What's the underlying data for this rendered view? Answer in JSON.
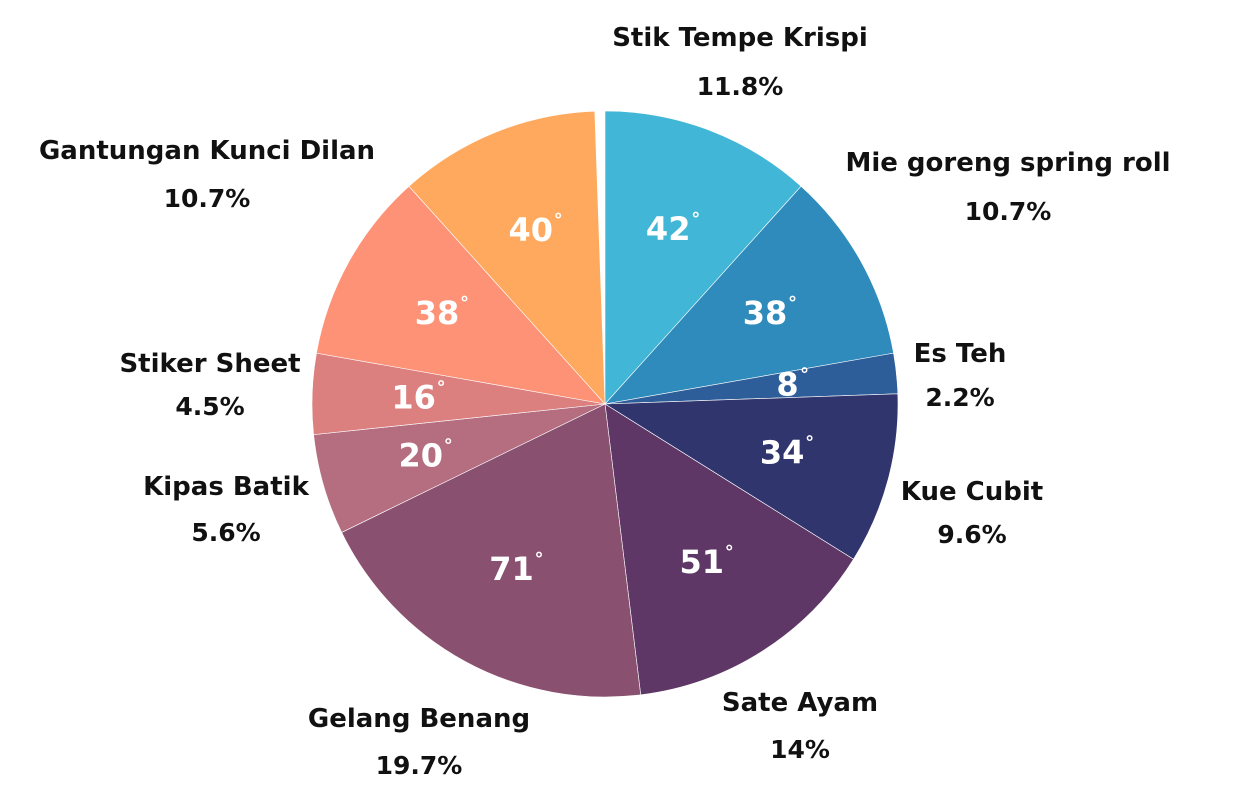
{
  "chart_data": {
    "type": "pie",
    "start_angle_deg": 0,
    "direction": "clockwise",
    "slices": [
      {
        "label": "Stik Tempe Krispi",
        "degrees": 42,
        "degree_text": "42",
        "percent_text": "11.8%",
        "color": "#41B6D6"
      },
      {
        "label": "Mie goreng spring roll",
        "degrees": 38,
        "degree_text": "38",
        "percent_text": "10.7%",
        "color": "#2E8BBB"
      },
      {
        "label": "Es Teh",
        "degrees": 8,
        "degree_text": "8",
        "percent_text": "2.2%",
        "color": "#2E5E99"
      },
      {
        "label": "Kue Cubit",
        "degrees": 34,
        "degree_text": "34",
        "percent_text": "9.6%",
        "color": "#30356E"
      },
      {
        "label": "Sate Ayam",
        "degrees": 51,
        "degree_text": "51",
        "percent_text": "14%",
        "color": "#5E3766"
      },
      {
        "label": "Gelang Benang",
        "degrees": 71,
        "degree_text": "71",
        "percent_text": "19.7%",
        "color": "#8A5070"
      },
      {
        "label": "Kipas Batik",
        "degrees": 20,
        "degree_text": "20",
        "percent_text": "5.6%",
        "color": "#B56D80"
      },
      {
        "label": "Stiker Sheet",
        "degrees": 16,
        "degree_text": "16",
        "percent_text": "4.5%",
        "color": "#DB7F7F"
      },
      {
        "label": "Gantungan Kunci Dilan",
        "degrees": 38,
        "degree_text": "38",
        "percent_text": "10.7%",
        "color": "#FD9277"
      },
      {
        "label": "",
        "degrees": 40,
        "degree_text": "40",
        "percent_text": "",
        "color": "#FEA95D"
      }
    ],
    "degree_symbol": "°"
  }
}
